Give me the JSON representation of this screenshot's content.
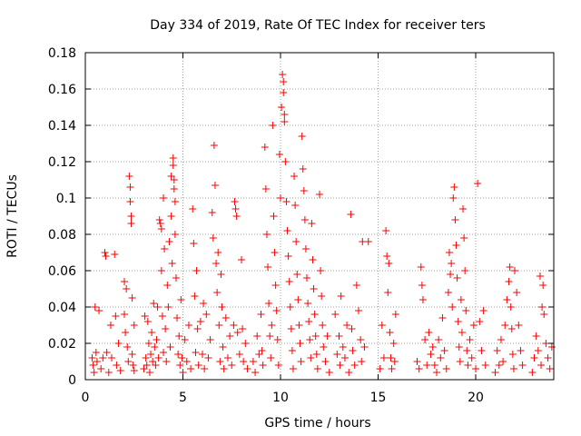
{
  "chart_data": {
    "type": "scatter",
    "title": "Day 334 of 2019, Rate Of TEC Index for receiver ters",
    "xlabel": "GPS time / hours",
    "ylabel": "ROTI / TECUs",
    "xlim": [
      0,
      24
    ],
    "ylim": [
      0,
      0.18
    ],
    "xticks": [
      0,
      5,
      10,
      15,
      20
    ],
    "xtick_labels": [
      "0",
      "5",
      "10",
      "15",
      "20"
    ],
    "yticks": [
      0,
      0.02,
      0.04,
      0.06,
      0.08,
      0.1,
      0.12,
      0.14,
      0.16,
      0.18
    ],
    "ytick_labels": [
      "0",
      "0.02",
      "0.04",
      "0.06",
      "0.08",
      "0.1",
      "0.12",
      "0.14",
      "0.16",
      "0.18"
    ],
    "grid": true,
    "marker": "plus",
    "color": "#ff0000",
    "series": [
      {
        "points": [
          [
            0.35,
            0.012
          ],
          [
            0.4,
            0.008
          ],
          [
            0.45,
            0.004
          ],
          [
            0.5,
            0.04
          ],
          [
            0.55,
            0.015
          ],
          [
            0.6,
            0.01
          ],
          [
            0.7,
            0.038
          ],
          [
            0.8,
            0.006
          ],
          [
            0.9,
            0.012
          ],
          [
            1.0,
            0.07
          ],
          [
            1.05,
            0.068
          ],
          [
            1.1,
            0.015
          ],
          [
            1.2,
            0.004
          ],
          [
            1.3,
            0.03
          ],
          [
            1.35,
            0.012
          ],
          [
            1.5,
            0.069
          ],
          [
            1.55,
            0.035
          ],
          [
            1.6,
            0.008
          ],
          [
            1.7,
            0.02
          ],
          [
            1.8,
            0.005
          ],
          [
            2.0,
            0.054
          ],
          [
            2.0,
            0.036
          ],
          [
            2.05,
            0.026
          ],
          [
            2.1,
            0.05
          ],
          [
            2.15,
            0.018
          ],
          [
            2.2,
            0.01
          ],
          [
            2.25,
            0.112
          ],
          [
            2.3,
            0.106
          ],
          [
            2.3,
            0.098
          ],
          [
            2.35,
            0.09
          ],
          [
            2.35,
            0.086
          ],
          [
            2.4,
            0.045
          ],
          [
            2.4,
            0.014
          ],
          [
            2.45,
            0.008
          ],
          [
            2.5,
            0.03
          ],
          [
            2.5,
            0.005
          ],
          [
            3.0,
            0.006
          ],
          [
            3.05,
            0.035
          ],
          [
            3.1,
            0.012
          ],
          [
            3.15,
            0.008
          ],
          [
            3.2,
            0.032
          ],
          [
            3.25,
            0.02
          ],
          [
            3.3,
            0.004
          ],
          [
            3.35,
            0.014
          ],
          [
            3.4,
            0.026
          ],
          [
            3.45,
            0.01
          ],
          [
            3.5,
            0.042
          ],
          [
            3.55,
            0.018
          ],
          [
            3.6,
            0.008
          ],
          [
            3.65,
            0.022
          ],
          [
            3.7,
            0.04
          ],
          [
            3.75,
            0.012
          ],
          [
            3.8,
            0.088
          ],
          [
            3.85,
            0.086
          ],
          [
            3.9,
            0.083
          ],
          [
            3.9,
            0.06
          ],
          [
            3.95,
            0.035
          ],
          [
            4.0,
            0.015
          ],
          [
            4.0,
            0.1
          ],
          [
            4.05,
            0.072
          ],
          [
            4.1,
            0.028
          ],
          [
            4.15,
            0.01
          ],
          [
            4.2,
            0.052
          ],
          [
            4.25,
            0.04
          ],
          [
            4.3,
            0.076
          ],
          [
            4.35,
            0.018
          ],
          [
            4.4,
            0.112
          ],
          [
            4.4,
            0.09
          ],
          [
            4.45,
            0.064
          ],
          [
            4.5,
            0.122
          ],
          [
            4.5,
            0.118
          ],
          [
            4.55,
            0.11
          ],
          [
            4.55,
            0.105
          ],
          [
            4.6,
            0.098
          ],
          [
            4.6,
            0.08
          ],
          [
            4.65,
            0.056
          ],
          [
            4.7,
            0.034
          ],
          [
            4.75,
            0.014
          ],
          [
            4.8,
            0.024
          ],
          [
            4.85,
            0.008
          ],
          [
            4.9,
            0.044
          ],
          [
            4.95,
            0.012
          ],
          [
            5.0,
            0.004
          ],
          [
            5.1,
            0.022
          ],
          [
            5.2,
            0.01
          ],
          [
            5.3,
            0.03
          ],
          [
            5.4,
            0.006
          ],
          [
            5.5,
            0.094
          ],
          [
            5.55,
            0.075
          ],
          [
            5.6,
            0.046
          ],
          [
            5.65,
            0.015
          ],
          [
            5.7,
            0.06
          ],
          [
            5.75,
            0.028
          ],
          [
            5.8,
            0.008
          ],
          [
            5.9,
            0.032
          ],
          [
            6.0,
            0.014
          ],
          [
            6.05,
            0.042
          ],
          [
            6.1,
            0.006
          ],
          [
            6.2,
            0.036
          ],
          [
            6.3,
            0.012
          ],
          [
            6.4,
            0.022
          ],
          [
            6.5,
            0.092
          ],
          [
            6.55,
            0.078
          ],
          [
            6.6,
            0.129
          ],
          [
            6.65,
            0.107
          ],
          [
            6.7,
            0.064
          ],
          [
            6.75,
            0.048
          ],
          [
            6.8,
            0.07
          ],
          [
            6.85,
            0.03
          ],
          [
            6.9,
            0.01
          ],
          [
            6.95,
            0.058
          ],
          [
            7.0,
            0.04
          ],
          [
            7.05,
            0.018
          ],
          [
            7.1,
            0.006
          ],
          [
            7.2,
            0.034
          ],
          [
            7.3,
            0.012
          ],
          [
            7.4,
            0.024
          ],
          [
            7.5,
            0.008
          ],
          [
            7.6,
            0.03
          ],
          [
            7.65,
            0.098
          ],
          [
            7.7,
            0.094
          ],
          [
            7.75,
            0.09
          ],
          [
            7.8,
            0.026
          ],
          [
            7.9,
            0.014
          ],
          [
            8.0,
            0.066
          ],
          [
            8.05,
            0.028
          ],
          [
            8.1,
            0.01
          ],
          [
            8.2,
            0.02
          ],
          [
            8.3,
            0.006
          ],
          [
            8.6,
            0.01
          ],
          [
            8.7,
            0.004
          ],
          [
            8.8,
            0.024
          ],
          [
            8.9,
            0.014
          ],
          [
            9.0,
            0.036
          ],
          [
            9.05,
            0.016
          ],
          [
            9.1,
            0.008
          ],
          [
            9.2,
            0.128
          ],
          [
            9.25,
            0.105
          ],
          [
            9.3,
            0.08
          ],
          [
            9.35,
            0.062
          ],
          [
            9.4,
            0.042
          ],
          [
            9.45,
            0.024
          ],
          [
            9.5,
            0.012
          ],
          [
            9.55,
            0.03
          ],
          [
            9.6,
            0.14
          ],
          [
            9.65,
            0.09
          ],
          [
            9.7,
            0.07
          ],
          [
            9.75,
            0.052
          ],
          [
            9.8,
            0.038
          ],
          [
            9.85,
            0.022
          ],
          [
            9.9,
            0.008
          ],
          [
            9.95,
            0.124
          ],
          [
            10.0,
            0.1
          ],
          [
            10.05,
            0.15
          ],
          [
            10.1,
            0.168
          ],
          [
            10.15,
            0.164
          ],
          [
            10.15,
            0.158
          ],
          [
            10.2,
            0.146
          ],
          [
            10.2,
            0.142
          ],
          [
            10.25,
            0.12
          ],
          [
            10.3,
            0.098
          ],
          [
            10.35,
            0.082
          ],
          [
            10.4,
            0.068
          ],
          [
            10.45,
            0.054
          ],
          [
            10.5,
            0.04
          ],
          [
            10.55,
            0.028
          ],
          [
            10.6,
            0.016
          ],
          [
            10.65,
            0.006
          ],
          [
            10.7,
            0.112
          ],
          [
            10.75,
            0.096
          ],
          [
            10.8,
            0.076
          ],
          [
            10.85,
            0.058
          ],
          [
            10.9,
            0.044
          ],
          [
            10.95,
            0.03
          ],
          [
            11.0,
            0.02
          ],
          [
            11.05,
            0.01
          ],
          [
            11.1,
            0.134
          ],
          [
            11.15,
            0.116
          ],
          [
            11.2,
            0.104
          ],
          [
            11.25,
            0.088
          ],
          [
            11.3,
            0.072
          ],
          [
            11.35,
            0.056
          ],
          [
            11.4,
            0.042
          ],
          [
            11.45,
            0.032
          ],
          [
            11.5,
            0.022
          ],
          [
            11.55,
            0.012
          ],
          [
            11.6,
            0.086
          ],
          [
            11.65,
            0.066
          ],
          [
            11.7,
            0.05
          ],
          [
            11.75,
            0.036
          ],
          [
            11.8,
            0.024
          ],
          [
            11.85,
            0.014
          ],
          [
            11.9,
            0.006
          ],
          [
            12.0,
            0.102
          ],
          [
            12.05,
            0.06
          ],
          [
            12.1,
            0.046
          ],
          [
            12.15,
            0.03
          ],
          [
            12.2,
            0.018
          ],
          [
            12.3,
            0.01
          ],
          [
            12.4,
            0.024
          ],
          [
            12.5,
            0.004
          ],
          [
            12.8,
            0.036
          ],
          [
            12.9,
            0.014
          ],
          [
            13.0,
            0.024
          ],
          [
            13.05,
            0.008
          ],
          [
            13.1,
            0.046
          ],
          [
            13.2,
            0.018
          ],
          [
            13.3,
            0.012
          ],
          [
            13.4,
            0.03
          ],
          [
            13.5,
            0.004
          ],
          [
            13.6,
            0.091
          ],
          [
            13.65,
            0.028
          ],
          [
            13.7,
            0.016
          ],
          [
            13.8,
            0.008
          ],
          [
            13.9,
            0.052
          ],
          [
            14.0,
            0.038
          ],
          [
            14.1,
            0.022
          ],
          [
            14.15,
            0.01
          ],
          [
            14.2,
            0.076
          ],
          [
            14.3,
            0.018
          ],
          [
            14.5,
            0.076
          ],
          [
            15.1,
            0.006
          ],
          [
            15.2,
            0.03
          ],
          [
            15.3,
            0.012
          ],
          [
            15.4,
            0.082
          ],
          [
            15.45,
            0.068
          ],
          [
            15.5,
            0.048
          ],
          [
            15.55,
            0.064
          ],
          [
            15.6,
            0.026
          ],
          [
            15.65,
            0.012
          ],
          [
            15.7,
            0.006
          ],
          [
            15.8,
            0.02
          ],
          [
            15.85,
            0.01
          ],
          [
            15.9,
            0.036
          ],
          [
            17.0,
            0.01
          ],
          [
            17.1,
            0.006
          ],
          [
            17.2,
            0.062
          ],
          [
            17.25,
            0.052
          ],
          [
            17.3,
            0.044
          ],
          [
            17.4,
            0.022
          ],
          [
            17.5,
            0.008
          ],
          [
            17.6,
            0.026
          ],
          [
            17.7,
            0.014
          ],
          [
            17.8,
            0.018
          ],
          [
            17.9,
            0.008
          ],
          [
            18.0,
            0.004
          ],
          [
            18.1,
            0.022
          ],
          [
            18.2,
            0.012
          ],
          [
            18.3,
            0.034
          ],
          [
            18.4,
            0.016
          ],
          [
            18.5,
            0.006
          ],
          [
            18.6,
            0.048
          ],
          [
            18.65,
            0.07
          ],
          [
            18.7,
            0.058
          ],
          [
            18.75,
            0.064
          ],
          [
            18.8,
            0.04
          ],
          [
            18.85,
            0.1
          ],
          [
            18.9,
            0.106
          ],
          [
            18.95,
            0.088
          ],
          [
            19.0,
            0.074
          ],
          [
            19.05,
            0.056
          ],
          [
            19.1,
            0.032
          ],
          [
            19.15,
            0.018
          ],
          [
            19.2,
            0.01
          ],
          [
            19.25,
            0.044
          ],
          [
            19.3,
            0.026
          ],
          [
            19.35,
            0.094
          ],
          [
            19.4,
            0.078
          ],
          [
            19.45,
            0.06
          ],
          [
            19.5,
            0.038
          ],
          [
            19.55,
            0.016
          ],
          [
            19.6,
            0.008
          ],
          [
            19.7,
            0.022
          ],
          [
            19.8,
            0.012
          ],
          [
            19.9,
            0.03
          ],
          [
            20.0,
            0.006
          ],
          [
            20.1,
            0.108
          ],
          [
            20.2,
            0.032
          ],
          [
            20.3,
            0.016
          ],
          [
            20.4,
            0.038
          ],
          [
            20.5,
            0.008
          ],
          [
            21.0,
            0.004
          ],
          [
            21.1,
            0.016
          ],
          [
            21.2,
            0.008
          ],
          [
            21.3,
            0.022
          ],
          [
            21.4,
            0.01
          ],
          [
            21.5,
            0.03
          ],
          [
            21.6,
            0.044
          ],
          [
            21.7,
            0.054
          ],
          [
            21.75,
            0.062
          ],
          [
            21.8,
            0.04
          ],
          [
            21.85,
            0.028
          ],
          [
            21.9,
            0.014
          ],
          [
            21.95,
            0.006
          ],
          [
            22.0,
            0.06
          ],
          [
            22.1,
            0.048
          ],
          [
            22.2,
            0.03
          ],
          [
            22.3,
            0.016
          ],
          [
            22.4,
            0.008
          ],
          [
            22.9,
            0.004
          ],
          [
            23.0,
            0.012
          ],
          [
            23.1,
            0.024
          ],
          [
            23.2,
            0.016
          ],
          [
            23.3,
            0.057
          ],
          [
            23.35,
            0.008
          ],
          [
            23.4,
            0.04
          ],
          [
            23.45,
            0.052
          ],
          [
            23.5,
            0.036
          ],
          [
            23.6,
            0.02
          ],
          [
            23.7,
            0.012
          ],
          [
            23.8,
            0.006
          ],
          [
            23.9,
            0.018
          ]
        ]
      }
    ]
  }
}
